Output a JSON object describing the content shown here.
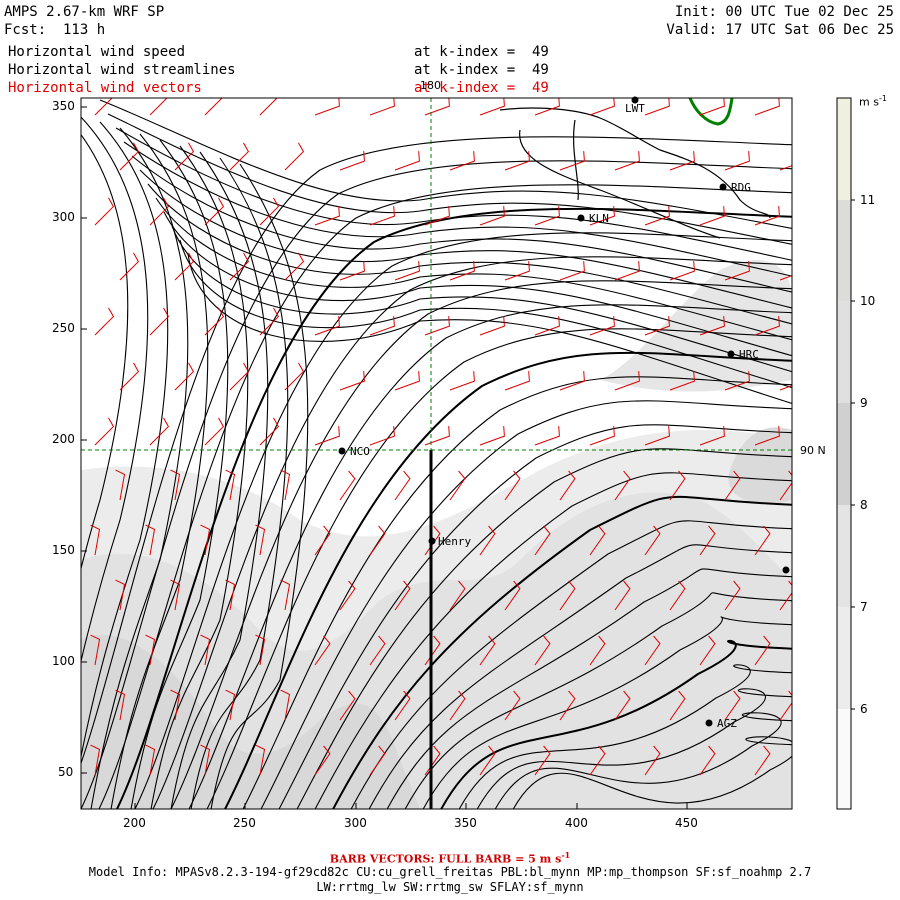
{
  "header": {
    "model_title": "AMPS 2.67-km WRF SP",
    "forecast": "Fcst:  113 h",
    "init": "Init: 00 UTC Tue 02 Dec 25",
    "valid": "Valid: 17 UTC Sat 06 Dec 25",
    "fields": [
      {
        "name": "Horizontal wind speed",
        "level": "at k-index =  49",
        "color": "#000000"
      },
      {
        "name": "Horizontal wind streamlines",
        "level": "at k-index =  49",
        "color": "#000000"
      },
      {
        "name": "Horizontal wind vectors",
        "level": "at k-index =  49",
        "color": "#e00000"
      }
    ]
  },
  "map": {
    "x_ticks": [
      "200",
      "250",
      "300",
      "350",
      "400",
      "450"
    ],
    "y_ticks": [
      "350",
      "300",
      "250",
      "200",
      "150",
      "100",
      "50"
    ],
    "meridian_label": "180",
    "latitude_label": "90 N",
    "stations": [
      "LWT",
      "RDG",
      "KLN",
      "HRC",
      "NCO",
      "Henry",
      "AGZ"
    ]
  },
  "colorbar": {
    "unit": "m s",
    "unit_exp": "-1",
    "labels": [
      "11",
      "10",
      "9",
      "8",
      "7",
      "6"
    ],
    "colors": [
      "#f0f0e0",
      "#d4d4d0",
      "#d8d8d8",
      "#dcdcdc",
      "#e4e4e4",
      "#ececec",
      "#f4f4f4",
      "#ffffff"
    ]
  },
  "footer": {
    "barb_note": "BARB VECTORS:  FULL BARB = 5 m s",
    "barb_exp": "-1",
    "model_info": "Model Info: MPASv8.2.3-194-gf29cd82c CU:cu_grell_freitas PBL:bl_mynn MP:mp_thompson SF:sf_noahmp 2.7",
    "model_info2": "LW:rrtmg_lw SW:rrtmg_sw SFLAY:sf_mynn"
  }
}
